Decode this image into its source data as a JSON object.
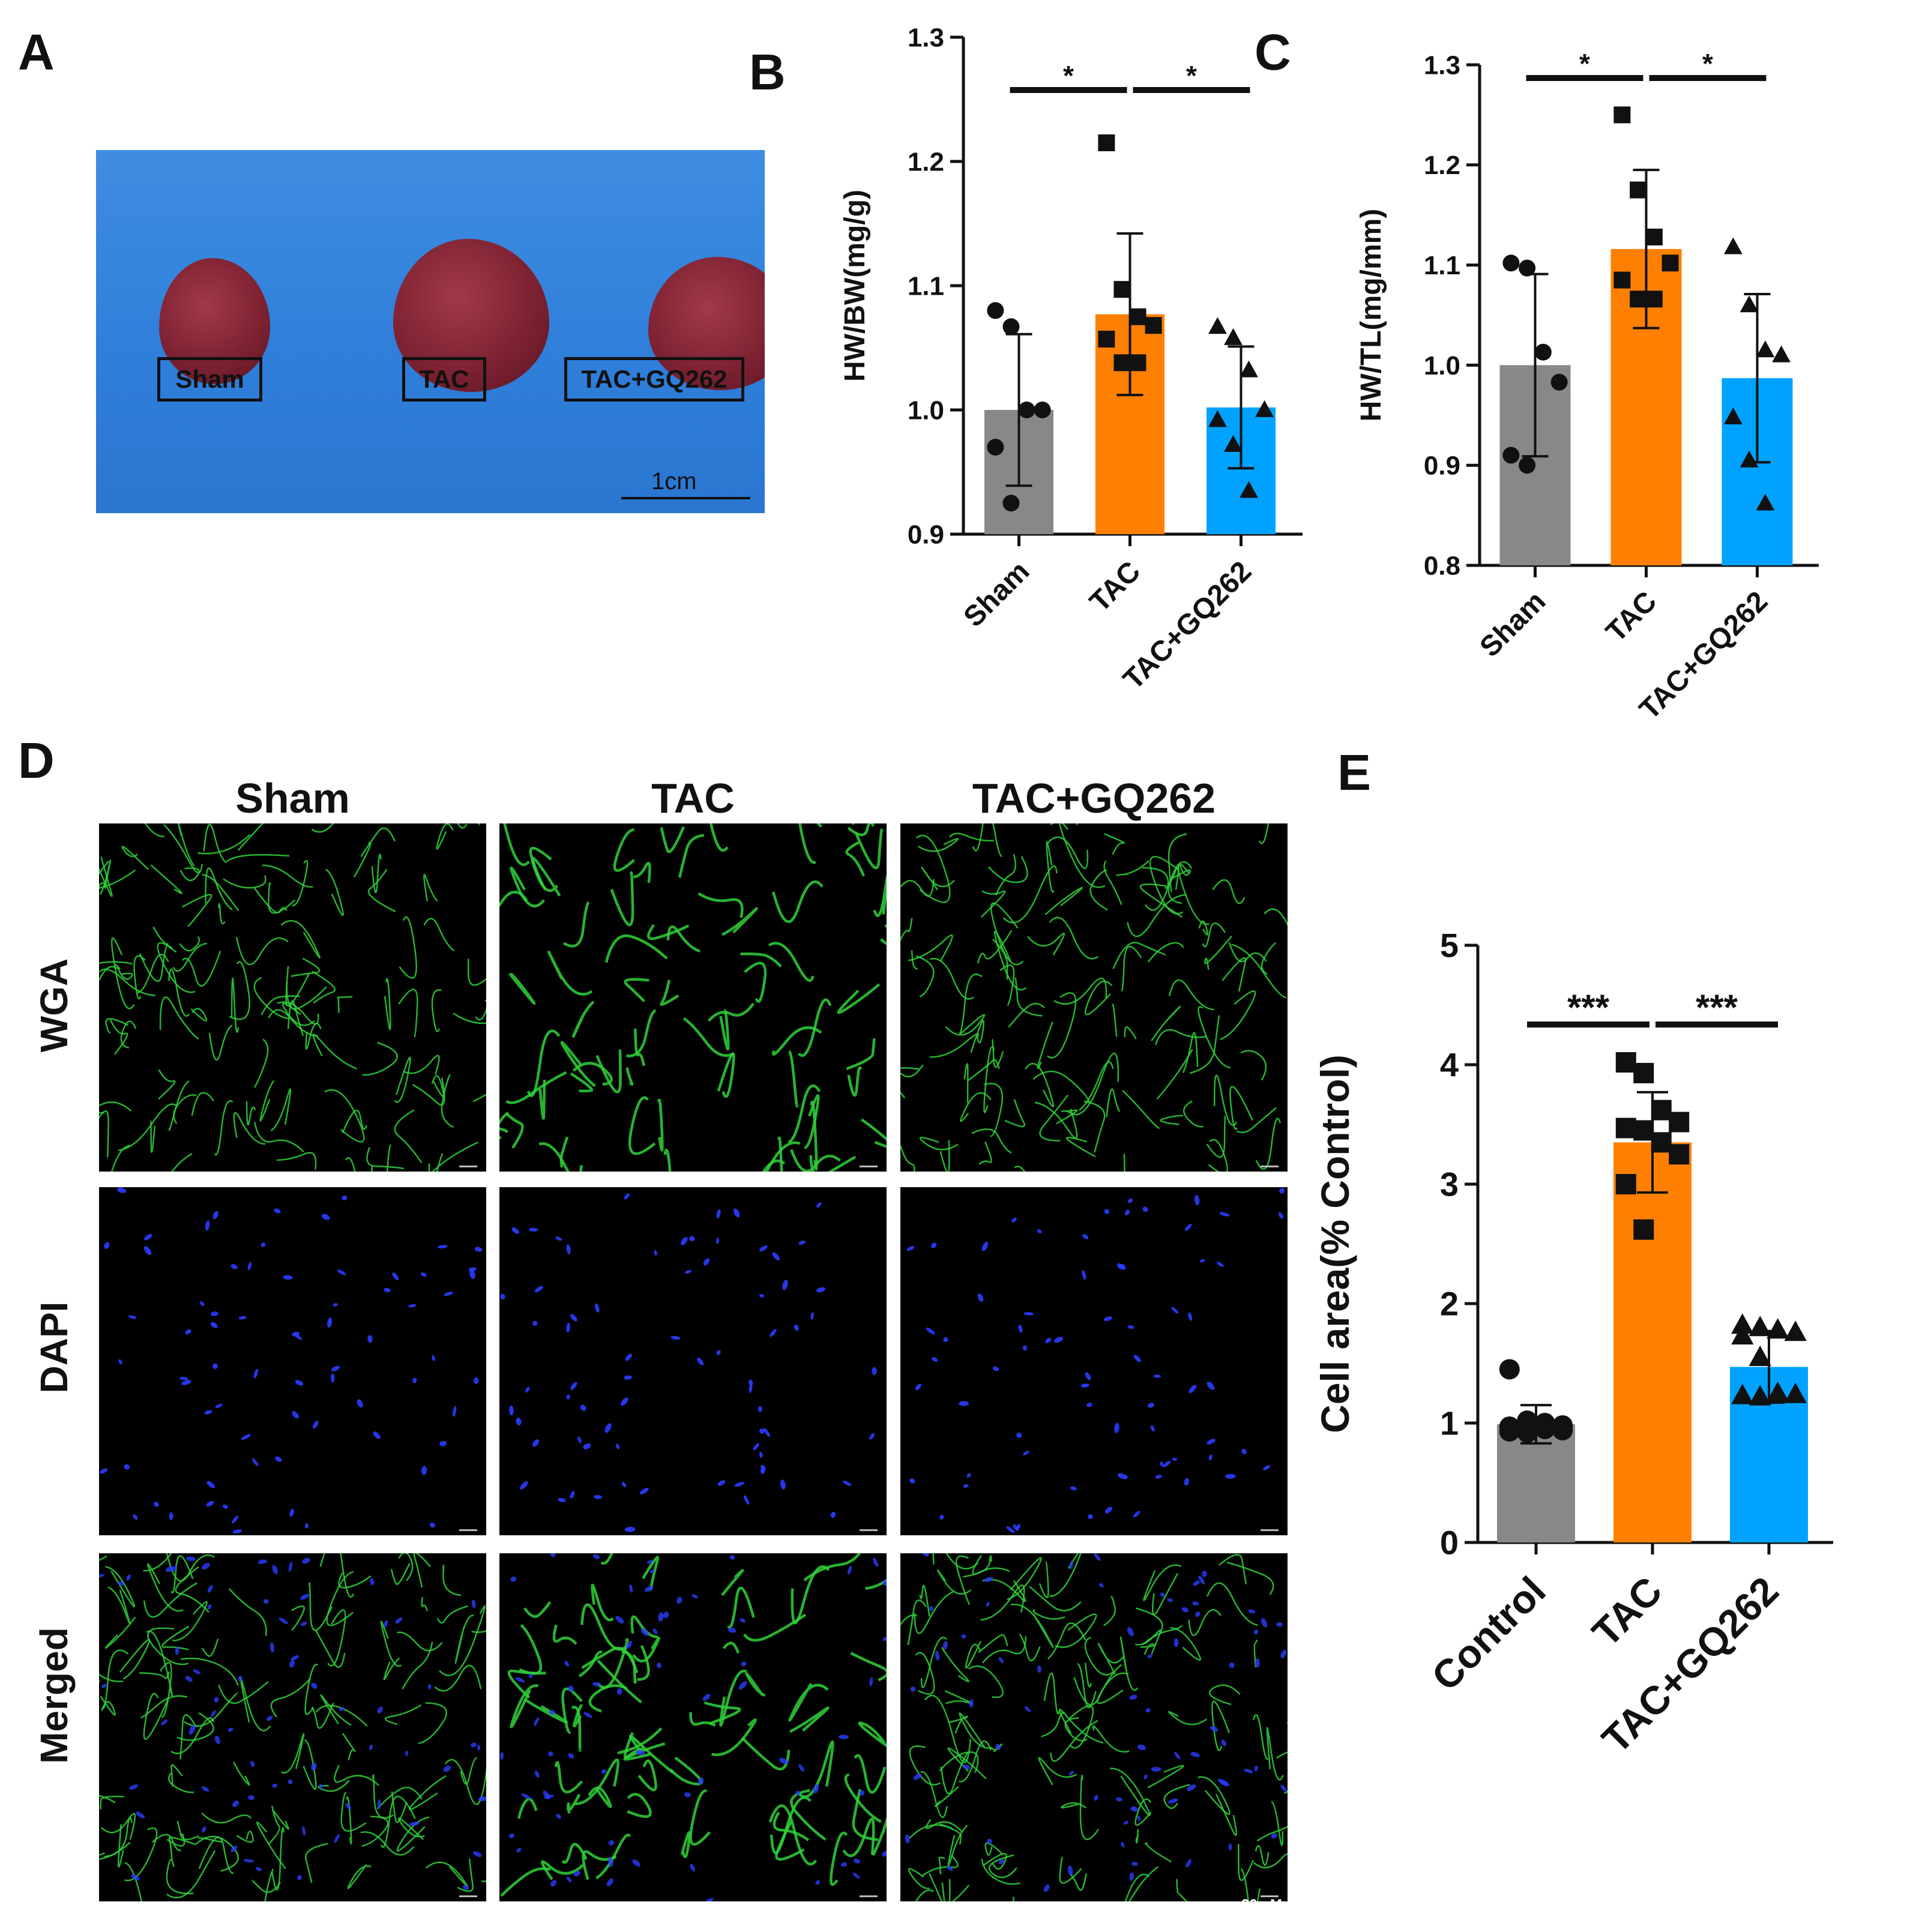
{
  "panels": {
    "a": {
      "letter": "A",
      "sample_labels": [
        "Sham",
        "TAC",
        "TAC+GQ262"
      ],
      "scale_label": "1cm"
    },
    "b": {
      "letter": "B"
    },
    "c": {
      "letter": "C"
    },
    "d": {
      "letter": "D",
      "columns": [
        "Sham",
        "TAC",
        "TAC+GQ262"
      ],
      "rows": [
        "WGA",
        "DAPI",
        "Merged"
      ],
      "scale_label": "20 μM"
    },
    "e": {
      "letter": "E"
    }
  },
  "colors": {
    "sham": "#888888",
    "tac": "#ff8000",
    "gq262": "#00a2ff",
    "axis": "#111111"
  },
  "chart_data": [
    {
      "id": "b",
      "type": "bar",
      "categories": [
        "Sham",
        "TAC",
        "TAC+GQ262"
      ],
      "ylabel": "HW/BW(mg/g)",
      "ylim": [
        0.9,
        1.3
      ],
      "yticks": [
        0.9,
        1.0,
        1.1,
        1.2,
        1.3
      ],
      "ytick_labels": [
        "0.9",
        "1.0",
        "1.1",
        "1.2",
        "1.3"
      ],
      "values": [
        1.0,
        1.077,
        1.002
      ],
      "sd": [
        0.061,
        0.065,
        0.049
      ],
      "markers": [
        "circle",
        "square",
        "triangle"
      ],
      "points": [
        [
          1.08,
          1.067,
          1.0,
          1.0,
          0.97,
          0.925
        ],
        [
          1.215,
          1.097,
          1.075,
          1.068,
          1.057,
          1.038,
          1.038
        ],
        [
          1.067,
          1.058,
          1.032,
          1.0,
          0.992,
          0.972,
          0.935
        ]
      ],
      "significance": [
        {
          "from": 0,
          "to": 1,
          "label": "*"
        },
        {
          "from": 1,
          "to": 2,
          "label": "*"
        }
      ],
      "grid": false
    },
    {
      "id": "c",
      "type": "bar",
      "categories": [
        "Sham",
        "TAC",
        "TAC+GQ262"
      ],
      "ylabel": "HW/TL(mg/mm)",
      "ylim": [
        0.8,
        1.3
      ],
      "yticks": [
        0.8,
        0.9,
        1.0,
        1.1,
        1.2,
        1.3
      ],
      "ytick_labels": [
        "0.8",
        "0.9",
        "1.0",
        "1.1",
        "1.2",
        "1.3"
      ],
      "values": [
        1.0,
        1.116,
        0.987
      ],
      "sd": [
        0.091,
        0.079,
        0.084
      ],
      "markers": [
        "circle",
        "square",
        "triangle"
      ],
      "points": [
        [
          1.102,
          1.097,
          1.013,
          0.983,
          0.91,
          0.9
        ],
        [
          1.25,
          1.175,
          1.128,
          1.102,
          1.085,
          1.066,
          1.066
        ],
        [
          1.118,
          1.06,
          1.015,
          1.01,
          0.948,
          0.905,
          0.862
        ]
      ],
      "significance": [
        {
          "from": 0,
          "to": 1,
          "label": "*"
        },
        {
          "from": 1,
          "to": 2,
          "label": "*"
        }
      ],
      "grid": false
    },
    {
      "id": "e",
      "type": "bar",
      "categories": [
        "Control",
        "TAC",
        "TAC+GQ262"
      ],
      "ylabel": "Cell area(% Control)",
      "ylim": [
        0,
        5
      ],
      "yticks": [
        0,
        1,
        2,
        3,
        4,
        5
      ],
      "ytick_labels": [
        "0",
        "1",
        "2",
        "3",
        "4",
        "5"
      ],
      "values": [
        0.99,
        3.35,
        1.47
      ],
      "sd": [
        0.16,
        0.42,
        0.3
      ],
      "markers": [
        "circle",
        "square",
        "triangle"
      ],
      "points": [
        [
          1.45,
          1.02,
          1.0,
          0.98,
          0.97,
          0.96,
          0.95,
          0.94,
          0.93,
          0.92
        ],
        [
          4.02,
          3.93,
          3.62,
          3.52,
          3.47,
          3.45,
          3.35,
          3.25,
          3.0,
          2.62
        ],
        [
          1.82,
          1.8,
          1.78,
          1.76,
          1.73,
          1.55,
          1.25,
          1.24,
          1.23,
          1.22
        ]
      ],
      "significance": [
        {
          "from": 0,
          "to": 1,
          "label": "***"
        },
        {
          "from": 1,
          "to": 2,
          "label": "***"
        }
      ],
      "grid": false
    }
  ]
}
